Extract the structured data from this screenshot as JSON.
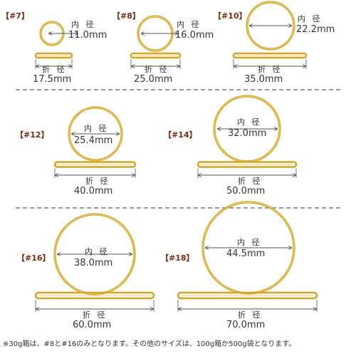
{
  "colors": {
    "band": "#d9a41f",
    "band_inner": "#f3d27a",
    "label": "#7a2e12",
    "dims": "#555555",
    "separator": "#9a9a9a"
  },
  "captions": {
    "inner": "内 径",
    "fold": "折 径"
  },
  "bands": [
    {
      "label": "【#7】",
      "inner": "11.0mm",
      "fold": "17.5mm"
    },
    {
      "label": "【#8】",
      "inner": "16.0mm",
      "fold": "25.0mm"
    },
    {
      "label": "【#10】",
      "inner": "22.2mm",
      "fold": "35.0mm"
    },
    {
      "label": "【#12】",
      "inner": "25.4mm",
      "fold": "40.0mm"
    },
    {
      "label": "【#14】",
      "inner": "32.0mm",
      "fold": "50.0mm"
    },
    {
      "label": "【#16】",
      "inner": "38.0mm",
      "fold": "60.0mm"
    },
    {
      "label": "【#18】",
      "inner": "44.5mm",
      "fold": "70.0mm"
    }
  ],
  "footnote": "※30g箱は、#8と#16のみとなります。その他のサイズは、100g箱か500g袋となります。"
}
